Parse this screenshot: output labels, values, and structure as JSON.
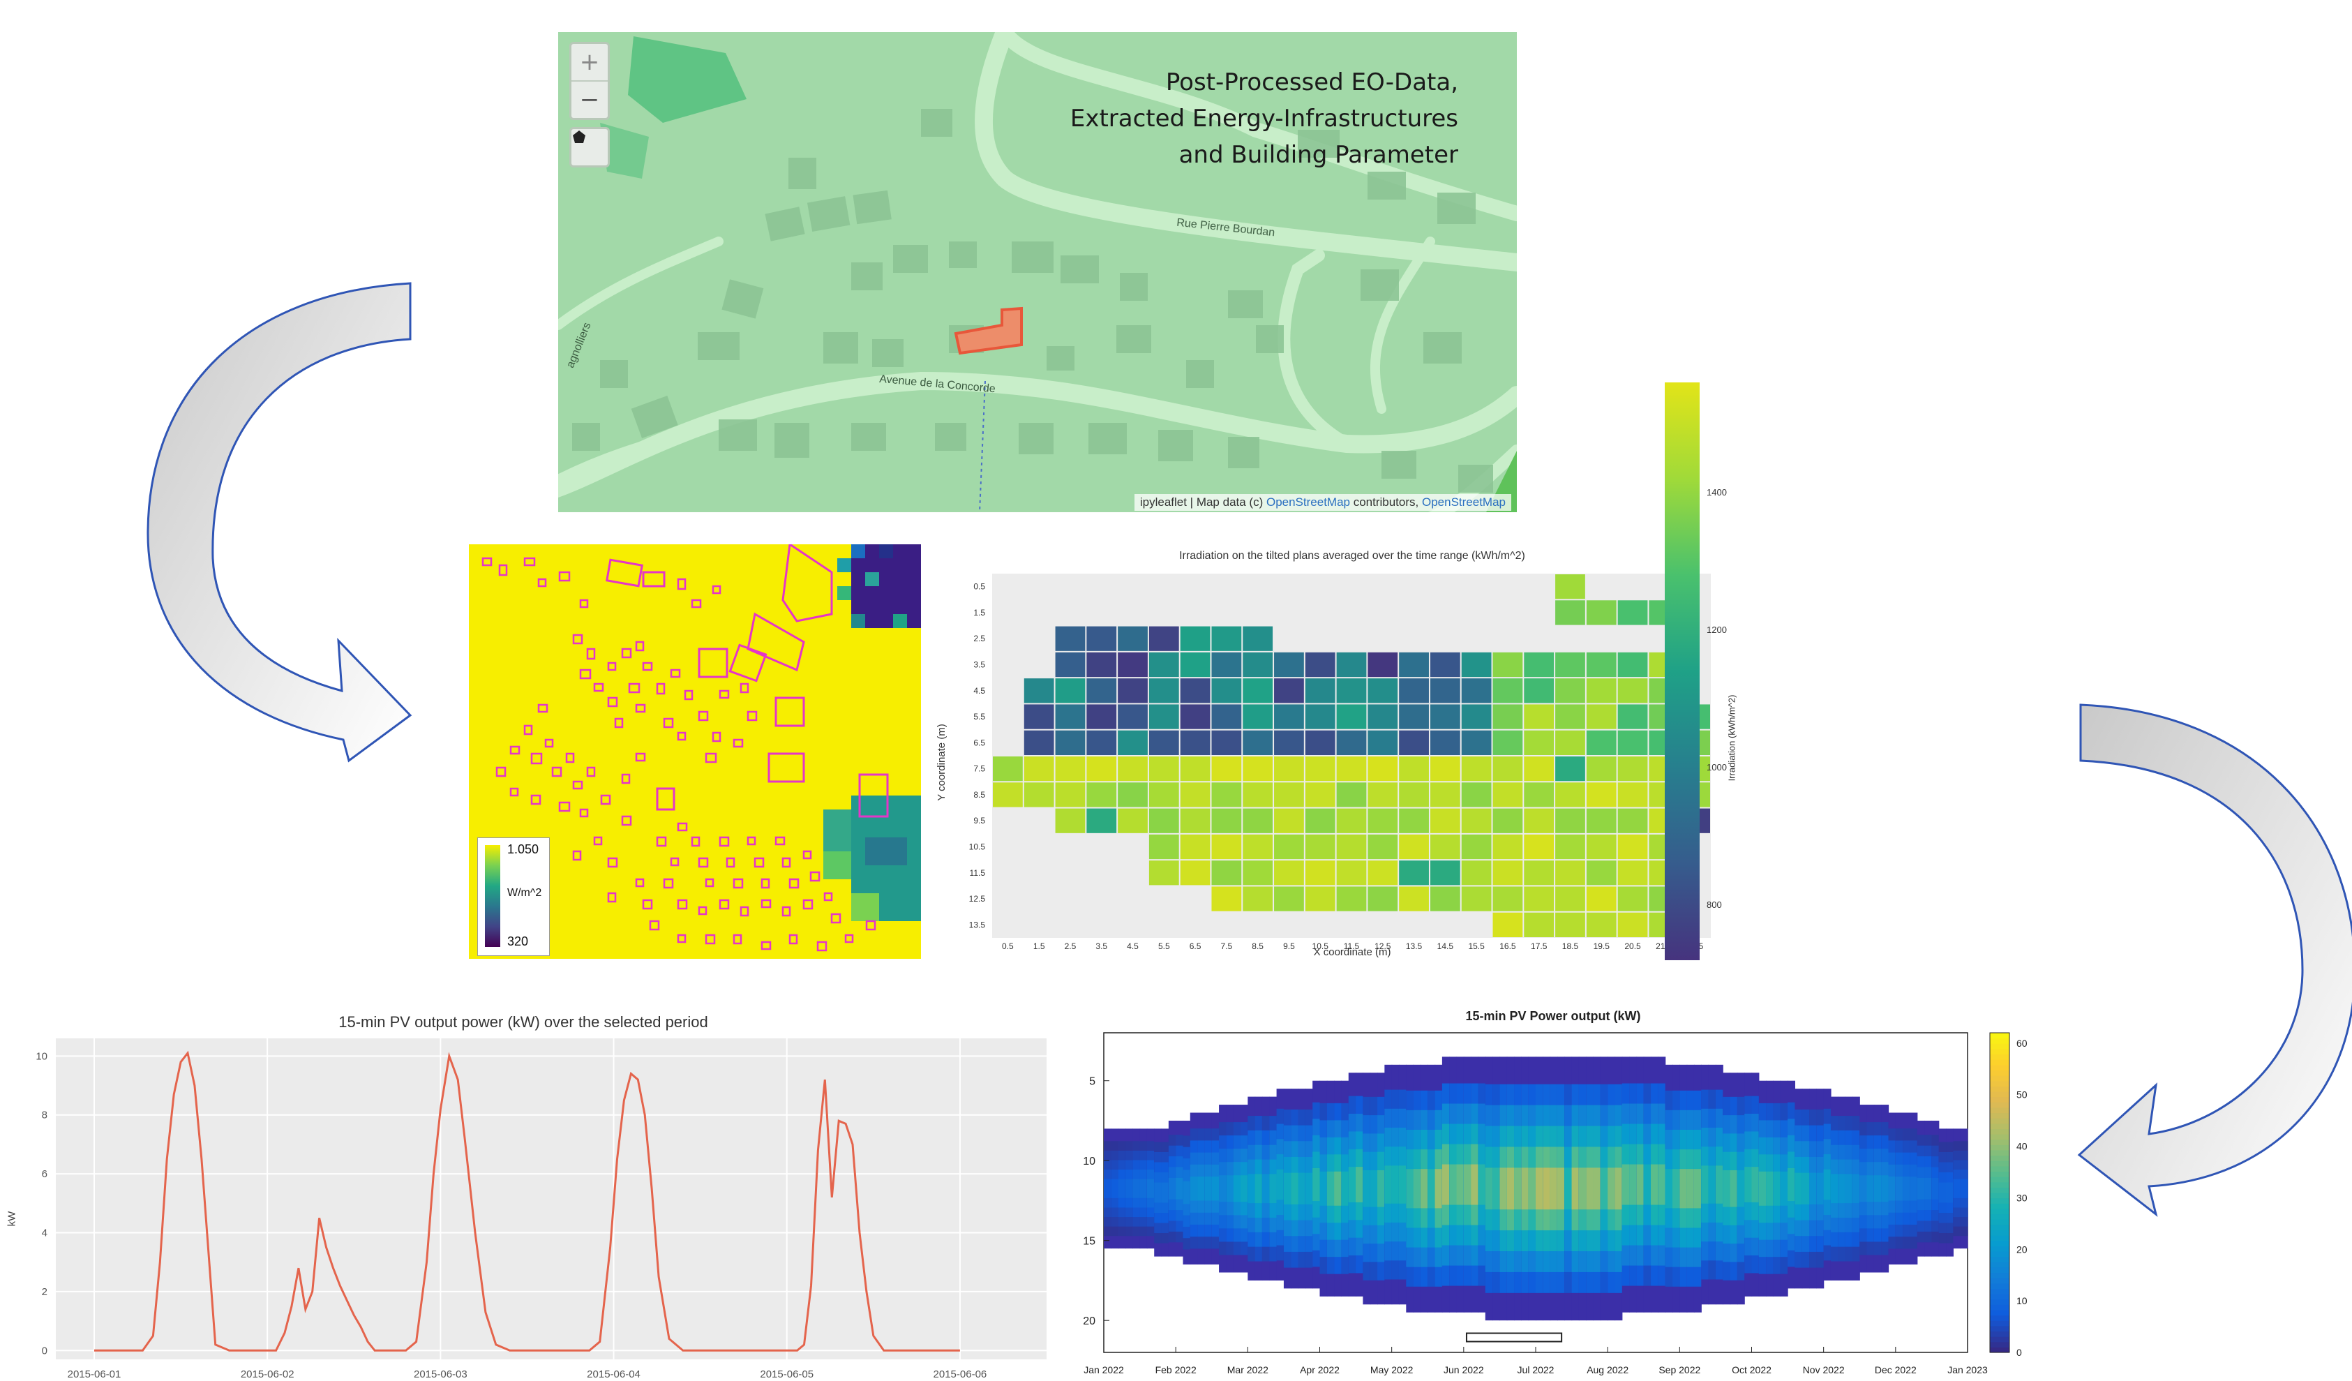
{
  "map": {
    "title_lines": [
      "Post-Processed EO-Data,",
      "Extracted Energy-Infrastructures",
      "and Building Parameter"
    ],
    "zoom_in": "+",
    "zoom_out": "−",
    "draw_tool": "pentagon-icon",
    "street_1": "Rue Pierre Bourdan",
    "street_2": "Avenue de la Concorde",
    "street_3": "agnolliers",
    "attribution_prefix": "ipyleaflet | Map data (c) ",
    "attribution_link1": "OpenStreetMap",
    "attribution_mid": " contributors, ",
    "attribution_link2": "OpenStreetMap",
    "colors": {
      "base": "#a2d9a8",
      "road": "#c8eec9",
      "building": "#8cc595",
      "park": "#4fbe7a",
      "highlight": "#e8573a"
    }
  },
  "irradiance_map": {
    "legend_max": "1.050",
    "legend_unit": "W/m^2",
    "legend_min": "320",
    "colors": {
      "background": "#f7ee00",
      "outline": "#e535c8"
    }
  },
  "chart_data": [
    {
      "type": "heatmap",
      "title": "Irradiation on the tilted plans averaged over the time range (kWh/m^2)",
      "xlabel": "X coordinate (m)",
      "ylabel": "Y coordinate (m)",
      "x_ticks": [
        "0.5",
        "1.5",
        "2.5",
        "3.5",
        "4.5",
        "5.5",
        "6.5",
        "7.5",
        "8.5",
        "9.5",
        "10.5",
        "11.5",
        "12.5",
        "13.5",
        "14.5",
        "15.5",
        "16.5",
        "17.5",
        "18.5",
        "19.5",
        "20.5",
        "21.5",
        "22.5"
      ],
      "y_ticks": [
        "0.5",
        "1.5",
        "2.5",
        "3.5",
        "4.5",
        "5.5",
        "6.5",
        "7.5",
        "8.5",
        "9.5",
        "10.5",
        "11.5",
        "12.5",
        "13.5"
      ],
      "colorbar_label": "Irradiation (kWh/m^2)",
      "colorbar_ticks": [
        "800",
        "1000",
        "1200",
        "1400"
      ],
      "colorbar_range": [
        720,
        1560
      ],
      "colormap": "viridis"
    },
    {
      "type": "line",
      "title": "15-min PV output power (kW) over the selected period",
      "xlabel": "",
      "ylabel": "kW",
      "x_ticks": [
        "2015-06-01",
        "2015-06-02",
        "2015-06-03",
        "2015-06-04",
        "2015-06-05",
        "2015-06-06"
      ],
      "y_ticks": [
        "0",
        "2",
        "4",
        "6",
        "8",
        "10"
      ],
      "ylim": [
        -0.3,
        10.6
      ],
      "xlim": [
        0,
        5.5
      ],
      "color": "#e4644c",
      "series": [
        {
          "x": [
            0,
            0.28,
            0.34,
            0.38,
            0.42,
            0.46,
            0.5,
            0.54,
            0.58,
            0.62,
            0.7,
            0.78,
            0.84,
            0.88,
            0.92,
            0.96,
            1.0,
            1.05,
            1.1,
            1.14,
            1.18,
            1.22,
            1.26,
            1.3,
            1.34,
            1.38,
            1.42,
            1.46,
            1.5,
            1.54,
            1.58,
            1.62,
            1.66,
            1.72,
            1.8,
            1.86,
            1.92,
            1.96,
            2.0,
            2.05,
            2.1,
            2.14,
            2.2,
            2.26,
            2.32,
            2.4,
            2.48,
            2.56,
            2.66,
            2.76,
            2.86,
            2.92,
            2.98,
            3.02,
            3.06,
            3.1,
            3.14,
            3.18,
            3.22,
            3.26,
            3.32,
            3.4,
            3.48,
            3.56,
            3.68,
            3.78,
            3.86,
            3.9,
            3.94,
            3.98,
            4.02,
            4.06,
            4.1,
            4.14,
            4.18,
            4.22,
            4.26,
            4.3,
            4.34,
            4.38,
            4.42,
            4.46,
            4.5,
            4.56,
            4.62,
            4.7,
            5.0
          ],
          "y": [
            0,
            0,
            0.5,
            3,
            6.5,
            8.7,
            9.8,
            10.1,
            9,
            6.5,
            0.2,
            0,
            0,
            0,
            0,
            0,
            0,
            0,
            0.6,
            1.5,
            2.8,
            1.4,
            2,
            4.5,
            3.5,
            2.8,
            2.2,
            1.7,
            1.2,
            0.8,
            0.3,
            0,
            0,
            0,
            0,
            0.3,
            3,
            6,
            8.2,
            10,
            9.2,
            7.2,
            4,
            1.3,
            0.2,
            0,
            0,
            0,
            0,
            0,
            0,
            0.3,
            3.5,
            6.5,
            8.5,
            9.4,
            9.2,
            8,
            5.5,
            2.5,
            0.4,
            0,
            0,
            0,
            0,
            0,
            0,
            0,
            0,
            0,
            0,
            0,
            0.2,
            2.2,
            6.8,
            9.2,
            5.2,
            7.8,
            7.7,
            7,
            4,
            2,
            0.5,
            0,
            0,
            0,
            0
          ]
        }
      ]
    },
    {
      "type": "heatmap",
      "title": "15-min PV Power output (kW)",
      "xlabel": "",
      "ylabel": "",
      "x_ticks": [
        "Jan 2022",
        "Feb 2022",
        "Mar 2022",
        "Apr 2022",
        "May 2022",
        "Jun 2022",
        "Jul 2022",
        "Aug 2022",
        "Sep 2022",
        "Oct 2022",
        "Nov 2022",
        "Dec 2022",
        "Jan 2023"
      ],
      "y_ticks": [
        "5",
        "10",
        "15",
        "20"
      ],
      "ylim": [
        2,
        22
      ],
      "colorbar_ticks": [
        "0",
        "10",
        "20",
        "30",
        "40",
        "50",
        "60"
      ],
      "colorbar_range": [
        0,
        62
      ],
      "colormap": "parula"
    }
  ]
}
